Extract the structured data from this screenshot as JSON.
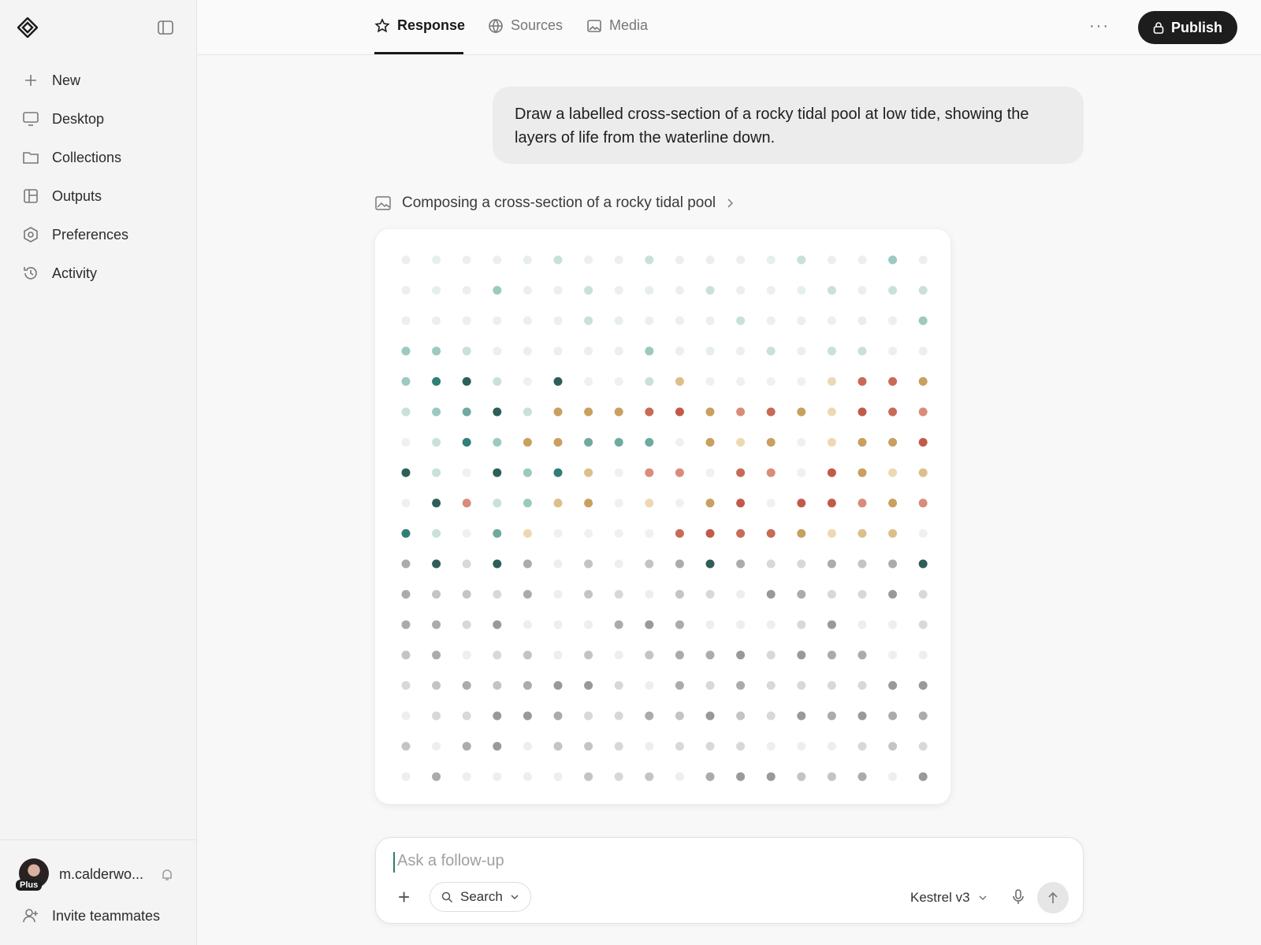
{
  "sidebar": {
    "items": [
      "New",
      "Desktop",
      "Collections",
      "Outputs",
      "Preferences",
      "Activity"
    ],
    "user": {
      "name": "m.calderwo...",
      "badge": "Plus"
    },
    "invite": "Invite teammates"
  },
  "header": {
    "tabs": [
      "Response",
      "Sources",
      "Media"
    ],
    "publish": "Publish"
  },
  "conversation": {
    "prompt": "Draw a labelled cross-section of a rocky tidal pool at low tide, showing the layers of life from the waterline down.",
    "status": "Composing a cross-section of a rocky tidal pool"
  },
  "composer": {
    "placeholder": "Ask a follow-up",
    "search": "Search",
    "model": "Kestrel v3"
  }
}
